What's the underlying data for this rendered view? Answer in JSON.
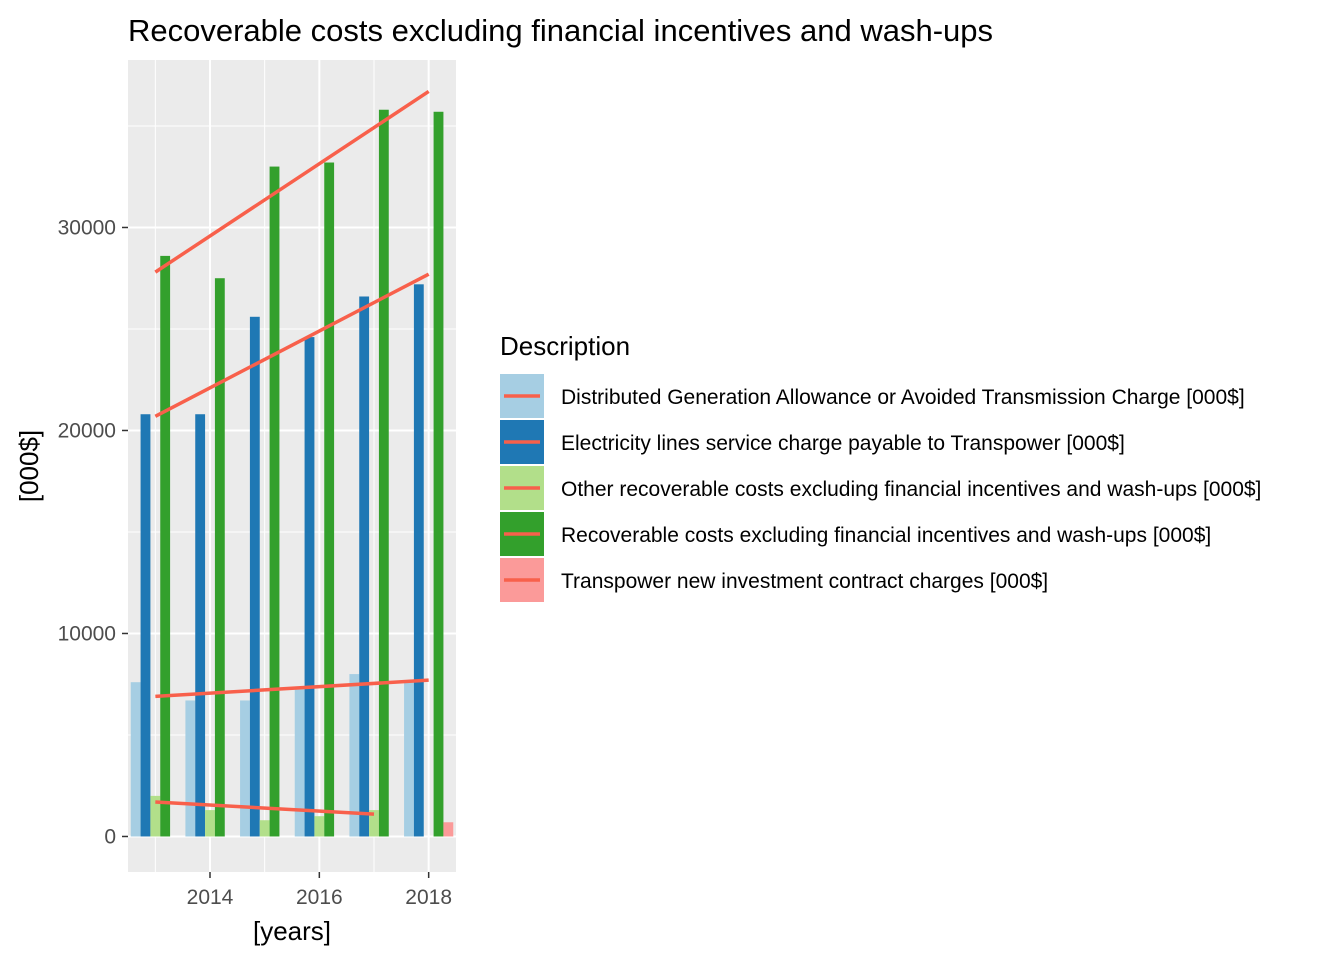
{
  "chart_data": {
    "type": "bar",
    "title": "Recoverable costs excluding financial incentives and wash-ups",
    "xlabel": "[years]",
    "ylabel": "[000$]",
    "x_ticks": [
      "2014",
      "2016",
      "2018"
    ],
    "x_tick_values": [
      2014,
      2016,
      2018
    ],
    "y_ticks": [
      "0",
      "10000",
      "20000",
      "30000"
    ],
    "y_tick_values": [
      0,
      10000,
      20000,
      30000
    ],
    "x_range": [
      2012.5,
      2018.5
    ],
    "y_range": [
      -1750,
      38250
    ],
    "years": [
      2013,
      2014,
      2015,
      2016,
      2017,
      2018
    ],
    "grid": true,
    "legend": {
      "title": "Description",
      "position": "right"
    },
    "trend_line_color": "#F8604B",
    "series": [
      {
        "name": "Distributed Generation Allowance or Avoided Transmission Charge [000$]",
        "color": "#A6CEE3",
        "values": [
          7600,
          6700,
          6700,
          7300,
          8000,
          7600
        ],
        "trend": {
          "x": [
            2013,
            2018
          ],
          "y": [
            6900,
            7700
          ]
        }
      },
      {
        "name": "Electricity lines service charge payable to Transpower [000$]",
        "color": "#1F78B4",
        "values": [
          20800,
          20800,
          25600,
          24600,
          26600,
          27200
        ],
        "trend": {
          "x": [
            2013,
            2018
          ],
          "y": [
            20700,
            27700
          ]
        }
      },
      {
        "name": "Other recoverable costs excluding financial incentives and wash-ups [000$]",
        "color": "#B2DF8A",
        "values": [
          2000,
          1300,
          800,
          1000,
          1300,
          0
        ],
        "trend": {
          "x": [
            2013,
            2017
          ],
          "y": [
            1700,
            1100
          ]
        }
      },
      {
        "name": "Recoverable costs excluding financial incentives and wash-ups [000$]",
        "color": "#33A02C",
        "values": [
          28600,
          27500,
          33000,
          33200,
          35800,
          35700
        ],
        "trend": {
          "x": [
            2013,
            2018
          ],
          "y": [
            27800,
            36700
          ]
        }
      },
      {
        "name": "Transpower new investment contract charges [000$]",
        "color": "#FB9A99",
        "values": [
          0,
          0,
          0,
          0,
          0,
          700
        ],
        "trend": null
      }
    ]
  }
}
